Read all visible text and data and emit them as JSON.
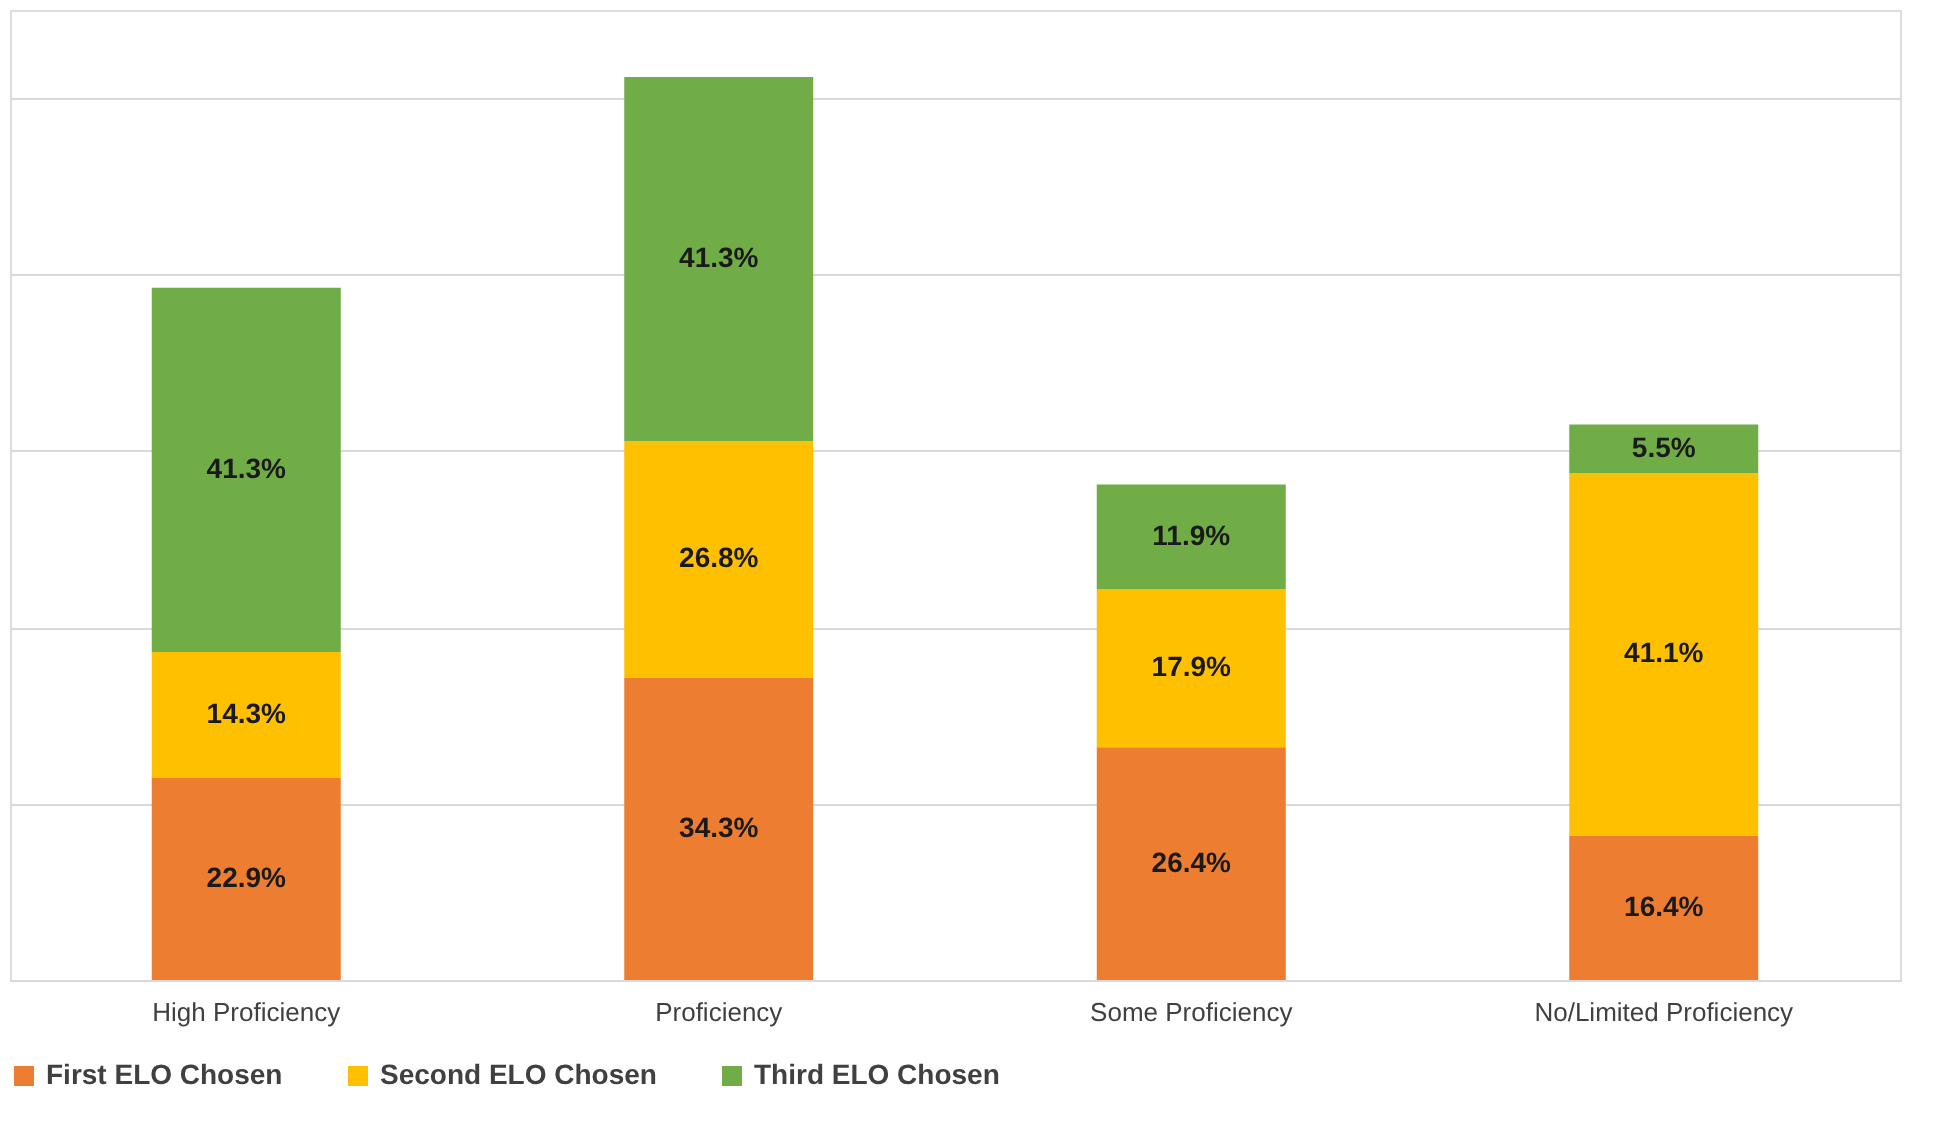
{
  "chart_data": {
    "type": "bar",
    "stacked": true,
    "categories": [
      "High Proficiency",
      "Proficiency",
      "Some Proficiency",
      "No/Limited Proficiency"
    ],
    "series": [
      {
        "name": "First ELO Chosen",
        "color": "#ed7d31",
        "values": [
          22.9,
          34.3,
          26.4,
          16.4
        ],
        "value_labels": [
          "22.9%",
          "34.3%",
          "26.4%",
          "16.4%"
        ]
      },
      {
        "name": "Second ELO Chosen",
        "color": "#ffc000",
        "values": [
          14.3,
          26.8,
          17.9,
          41.1
        ],
        "value_labels": [
          "14.3%",
          "26.8%",
          "17.9%",
          "41.1%"
        ]
      },
      {
        "name": "Third ELO Chosen",
        "color": "#70ad47",
        "values": [
          41.3,
          41.3,
          11.9,
          5.5
        ],
        "value_labels": [
          "41.3%",
          "41.3%",
          "11.9%",
          "5.5%"
        ]
      }
    ],
    "grid": "y",
    "tick_labels": "x",
    "legend": "bottom"
  }
}
